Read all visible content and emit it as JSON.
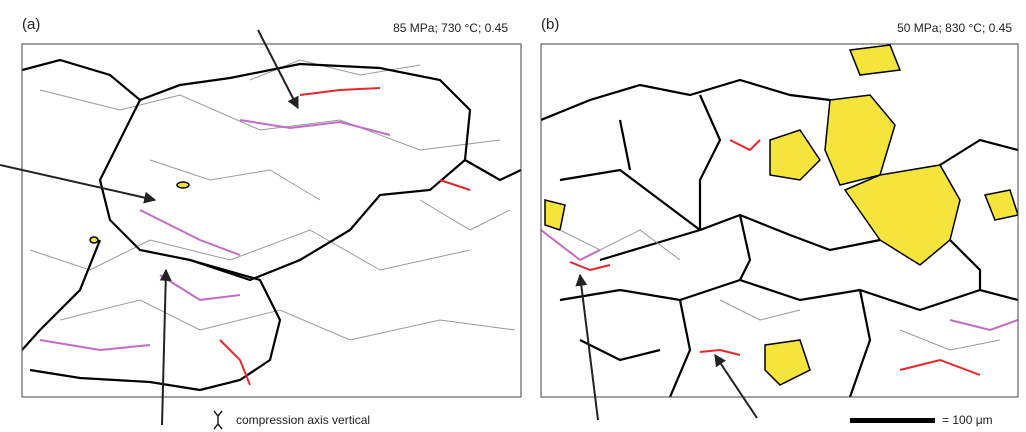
{
  "panel_a": {
    "label": "(a)",
    "conditions": "85 MPa; 730 °C; 0.45"
  },
  "panel_b": {
    "label": "(b)",
    "conditions": "50 MPa; 830 °C; 0.45"
  },
  "legend": {
    "compression": "compression axis vertical",
    "scale_bar": "= 100 μm"
  }
}
